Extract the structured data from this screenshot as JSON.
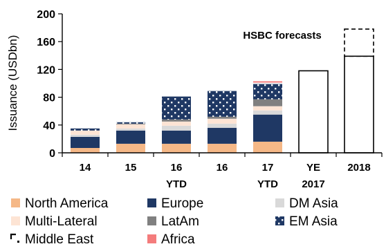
{
  "chart_data": {
    "type": "bar",
    "stacked": true,
    "ylabel": "Issuance (USDbn)",
    "ylim": [
      0,
      200
    ],
    "yticks": [
      0,
      40,
      80,
      120,
      160,
      200
    ],
    "categories": [
      {
        "line1": "14",
        "line2": ""
      },
      {
        "line1": "15",
        "line2": ""
      },
      {
        "line1": "16",
        "line2": "YTD"
      },
      {
        "line1": "16",
        "line2": ""
      },
      {
        "line1": "17",
        "line2": "YTD"
      },
      {
        "line1": "YE",
        "line2": "2017"
      },
      {
        "line1": "2018",
        "line2": ""
      }
    ],
    "series": [
      {
        "name": "North America",
        "color": "#f5b887",
        "pattern": "solid",
        "values": [
          7,
          13,
          13,
          13,
          16,
          0,
          0
        ]
      },
      {
        "name": "Europe",
        "color": "#1f3864",
        "pattern": "solid",
        "values": [
          16,
          19,
          19,
          23,
          39,
          0,
          0
        ]
      },
      {
        "name": "DM Asia",
        "color": "#d9d9d9",
        "pattern": "solid",
        "values": [
          3,
          3,
          7,
          6,
          6,
          0,
          0
        ]
      },
      {
        "name": "Multi-Lateral",
        "color": "#fde4d4",
        "pattern": "solid",
        "values": [
          6,
          6,
          6,
          7,
          6,
          0,
          0
        ]
      },
      {
        "name": "LatAm",
        "color": "#808080",
        "pattern": "solid",
        "values": [
          0,
          1,
          3,
          3,
          10,
          0,
          0
        ]
      },
      {
        "name": "EM Asia",
        "color": "#1f3864",
        "pattern": "dots",
        "values": [
          3,
          2,
          33,
          37,
          22,
          0,
          0
        ]
      },
      {
        "name": "Middle East",
        "color": "#000000",
        "pattern": "corner",
        "values": [
          0,
          0,
          0,
          0,
          2,
          0,
          0
        ]
      },
      {
        "name": "Africa",
        "color": "#f47c7c",
        "pattern": "solid",
        "values": [
          0,
          0,
          0,
          0,
          2,
          0,
          0
        ]
      }
    ],
    "forecast_totals": [
      null,
      null,
      null,
      null,
      null,
      118,
      139
    ],
    "forecast_upper": [
      null,
      null,
      null,
      null,
      null,
      null,
      178
    ],
    "annotation": "HSBC forecasts",
    "legend_placement": "bottom",
    "grid": false
  }
}
